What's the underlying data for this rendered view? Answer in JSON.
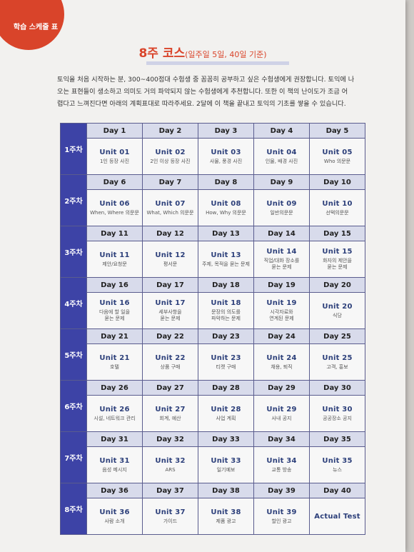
{
  "tab_label": "학습 스케줄 표",
  "title": {
    "main": "8주 코스",
    "sub": "(일주일 5일, 40일 기준)"
  },
  "intro": [
    "토익을 처음 시작하는 분, 300~400점대 수험생 중 꼼꼼히 공부하고 싶은 수험생에게 권장합니다. 토익에 나",
    "오는 표현들이 생소하고 의미도 거의 파악되지 않는 수험생에게 추천합니다. 또한 이 책의 난이도가 조금 어",
    "렵다고 느껴진다면 아래의 계획표대로 따라주세요. 2달에 이 책을 끝내고 토익의 기초를 쌓을 수 있습니다."
  ],
  "weeks": [
    {
      "label": "1주차",
      "days": [
        {
          "day": "Day 1",
          "unit": "Unit 01",
          "sub": [
            "1인 등장 사진"
          ]
        },
        {
          "day": "Day 2",
          "unit": "Unit 02",
          "sub": [
            "2인 이상 등장 사진"
          ]
        },
        {
          "day": "Day 3",
          "unit": "Unit 03",
          "sub": [
            "사물, 풍경 사진"
          ]
        },
        {
          "day": "Day 4",
          "unit": "Unit 04",
          "sub": [
            "인물, 배경 사진"
          ]
        },
        {
          "day": "Day 5",
          "unit": "Unit 05",
          "sub": [
            "Who 의문문"
          ]
        }
      ]
    },
    {
      "label": "2주차",
      "days": [
        {
          "day": "Day 6",
          "unit": "Unit 06",
          "sub": [
            "When, Where 의문문"
          ]
        },
        {
          "day": "Day 7",
          "unit": "Unit 07",
          "sub": [
            "What, Which 의문문"
          ]
        },
        {
          "day": "Day 8",
          "unit": "Unit 08",
          "sub": [
            "How, Why 의문문"
          ]
        },
        {
          "day": "Day 9",
          "unit": "Unit 09",
          "sub": [
            "일반의문문"
          ]
        },
        {
          "day": "Day 10",
          "unit": "Unit 10",
          "sub": [
            "선택의문문"
          ]
        }
      ]
    },
    {
      "label": "3주차",
      "days": [
        {
          "day": "Day 11",
          "unit": "Unit 11",
          "sub": [
            "제안/요청문"
          ]
        },
        {
          "day": "Day 12",
          "unit": "Unit 12",
          "sub": [
            "평서문"
          ]
        },
        {
          "day": "Day 13",
          "unit": "Unit 13",
          "sub": [
            "주제, 목적을 묻는 문제"
          ]
        },
        {
          "day": "Day 14",
          "unit": "Unit 14",
          "sub": [
            "직업/대화 장소를",
            "묻는 문제"
          ]
        },
        {
          "day": "Day 15",
          "unit": "Unit 15",
          "sub": [
            "화자의 제안을",
            "묻는 문제"
          ]
        }
      ]
    },
    {
      "label": "4주차",
      "days": [
        {
          "day": "Day 16",
          "unit": "Unit 16",
          "sub": [
            "다음에 할 일을",
            "묻는 문제"
          ]
        },
        {
          "day": "Day 17",
          "unit": "Unit 17",
          "sub": [
            "세부사항을",
            "묻는 문제"
          ]
        },
        {
          "day": "Day 18",
          "unit": "Unit 18",
          "sub": [
            "문장의 의도를",
            "파악하는 문제"
          ]
        },
        {
          "day": "Day 19",
          "unit": "Unit 19",
          "sub": [
            "시각자료와",
            "연계된 문제"
          ]
        },
        {
          "day": "Day 20",
          "unit": "Unit 20",
          "sub": [
            "식당"
          ]
        }
      ]
    },
    {
      "label": "5주차",
      "days": [
        {
          "day": "Day 21",
          "unit": "Unit 21",
          "sub": [
            "호텔"
          ]
        },
        {
          "day": "Day 22",
          "unit": "Unit 22",
          "sub": [
            "상품 구매"
          ]
        },
        {
          "day": "Day 23",
          "unit": "Unit 23",
          "sub": [
            "티켓 구매"
          ]
        },
        {
          "day": "Day 24",
          "unit": "Unit 24",
          "sub": [
            "채용, 퇴직"
          ]
        },
        {
          "day": "Day 25",
          "unit": "Unit 25",
          "sub": [
            "고객, 홍보"
          ]
        }
      ]
    },
    {
      "label": "6주차",
      "days": [
        {
          "day": "Day 26",
          "unit": "Unit 26",
          "sub": [
            "시설, 네트워크 관리"
          ]
        },
        {
          "day": "Day 27",
          "unit": "Unit 27",
          "sub": [
            "회계, 예산"
          ]
        },
        {
          "day": "Day 28",
          "unit": "Unit 28",
          "sub": [
            "사업 계획"
          ]
        },
        {
          "day": "Day 29",
          "unit": "Unit 29",
          "sub": [
            "사내 공지"
          ]
        },
        {
          "day": "Day 30",
          "unit": "Unit 30",
          "sub": [
            "공공장소 공지"
          ]
        }
      ]
    },
    {
      "label": "7주차",
      "days": [
        {
          "day": "Day 31",
          "unit": "Unit 31",
          "sub": [
            "음성 메시지"
          ]
        },
        {
          "day": "Day 32",
          "unit": "Unit 32",
          "sub": [
            "ARS"
          ]
        },
        {
          "day": "Day 33",
          "unit": "Unit 33",
          "sub": [
            "일기예보"
          ]
        },
        {
          "day": "Day 34",
          "unit": "Unit 34",
          "sub": [
            "교통 방송"
          ]
        },
        {
          "day": "Day 35",
          "unit": "Unit 35",
          "sub": [
            "뉴스"
          ]
        }
      ]
    },
    {
      "label": "8주차",
      "days": [
        {
          "day": "Day 36",
          "unit": "Unit 36",
          "sub": [
            "사람 소개"
          ]
        },
        {
          "day": "Day 37",
          "unit": "Unit 37",
          "sub": [
            "가이드"
          ]
        },
        {
          "day": "Day 38",
          "unit": "Unit 38",
          "sub": [
            "제품 광고"
          ]
        },
        {
          "day": "Day 39",
          "unit": "Unit 39",
          "sub": [
            "할인 광고"
          ]
        },
        {
          "day": "Day 40",
          "unit": "Actual Test",
          "sub": []
        }
      ]
    }
  ]
}
